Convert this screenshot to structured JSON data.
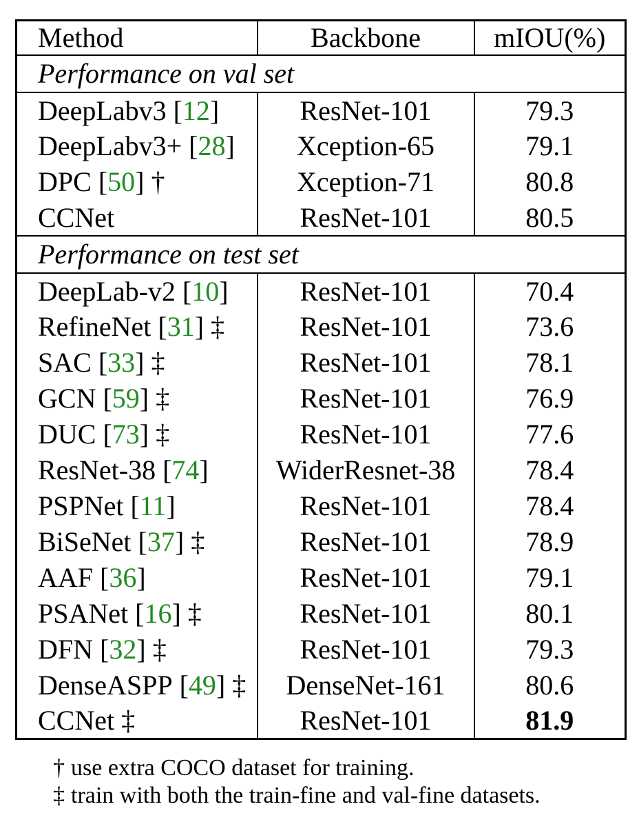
{
  "colors": {
    "citation_green": "#228B22",
    "text": "#000000",
    "border": "#000000",
    "background": "#ffffff"
  },
  "table": {
    "columns": [
      "Method",
      "Backbone",
      "mIOU(%)"
    ],
    "cite_prefix": "[",
    "cite_suffix": "]",
    "sections": [
      {
        "label": "Performance on val set",
        "rows": [
          {
            "method": "DeepLabv3",
            "cite": "12",
            "marker": null,
            "backbone": "ResNet-101",
            "miou": "79.3",
            "bold": false
          },
          {
            "method": "DeepLabv3+",
            "cite": "28",
            "marker": null,
            "backbone": "Xception-65",
            "miou": "79.1",
            "bold": false
          },
          {
            "method": "DPC",
            "cite": "50",
            "marker": "†",
            "backbone": "Xception-71",
            "miou": "80.8",
            "bold": false
          },
          {
            "method": "CCNet",
            "cite": null,
            "marker": null,
            "backbone": "ResNet-101",
            "miou": "80.5",
            "bold": false
          }
        ]
      },
      {
        "label": "Performance on test set",
        "rows": [
          {
            "method": "DeepLab-v2",
            "cite": "10",
            "marker": null,
            "backbone": "ResNet-101",
            "miou": "70.4",
            "bold": false
          },
          {
            "method": "RefineNet",
            "cite": "31",
            "marker": "‡",
            "backbone": "ResNet-101",
            "miou": "73.6",
            "bold": false
          },
          {
            "method": "SAC",
            "cite": "33",
            "marker": "‡",
            "backbone": "ResNet-101",
            "miou": "78.1",
            "bold": false
          },
          {
            "method": "GCN",
            "cite": "59",
            "marker": "‡",
            "backbone": "ResNet-101",
            "miou": "76.9",
            "bold": false
          },
          {
            "method": "DUC",
            "cite": "73",
            "marker": "‡",
            "backbone": "ResNet-101",
            "miou": "77.6",
            "bold": false
          },
          {
            "method": "ResNet-38",
            "cite": "74",
            "marker": null,
            "backbone": "WiderResnet-38",
            "miou": "78.4",
            "bold": false
          },
          {
            "method": "PSPNet",
            "cite": "11",
            "marker": null,
            "backbone": "ResNet-101",
            "miou": "78.4",
            "bold": false
          },
          {
            "method": "BiSeNet",
            "cite": "37",
            "marker": "‡",
            "backbone": "ResNet-101",
            "miou": "78.9",
            "bold": false
          },
          {
            "method": "AAF",
            "cite": "36",
            "marker": null,
            "backbone": "ResNet-101",
            "miou": "79.1",
            "bold": false
          },
          {
            "method": "PSANet",
            "cite": "16",
            "marker": "‡",
            "backbone": "ResNet-101",
            "miou": "80.1",
            "bold": false
          },
          {
            "method": "DFN",
            "cite": "32",
            "marker": "‡",
            "backbone": "ResNet-101",
            "miou": "79.3",
            "bold": false
          },
          {
            "method": "DenseASPP",
            "cite": "49",
            "marker": "‡",
            "backbone": "DenseNet-161",
            "miou": "80.6",
            "bold": false
          },
          {
            "method": "CCNet",
            "cite": null,
            "marker": "‡",
            "backbone": "ResNet-101",
            "miou": "81.9",
            "bold": true
          }
        ]
      }
    ]
  },
  "footnotes": [
    {
      "marker": "†",
      "text": "use extra COCO dataset for training."
    },
    {
      "marker": "‡",
      "text": "train with both the train-fine and val-fine datasets."
    }
  ]
}
